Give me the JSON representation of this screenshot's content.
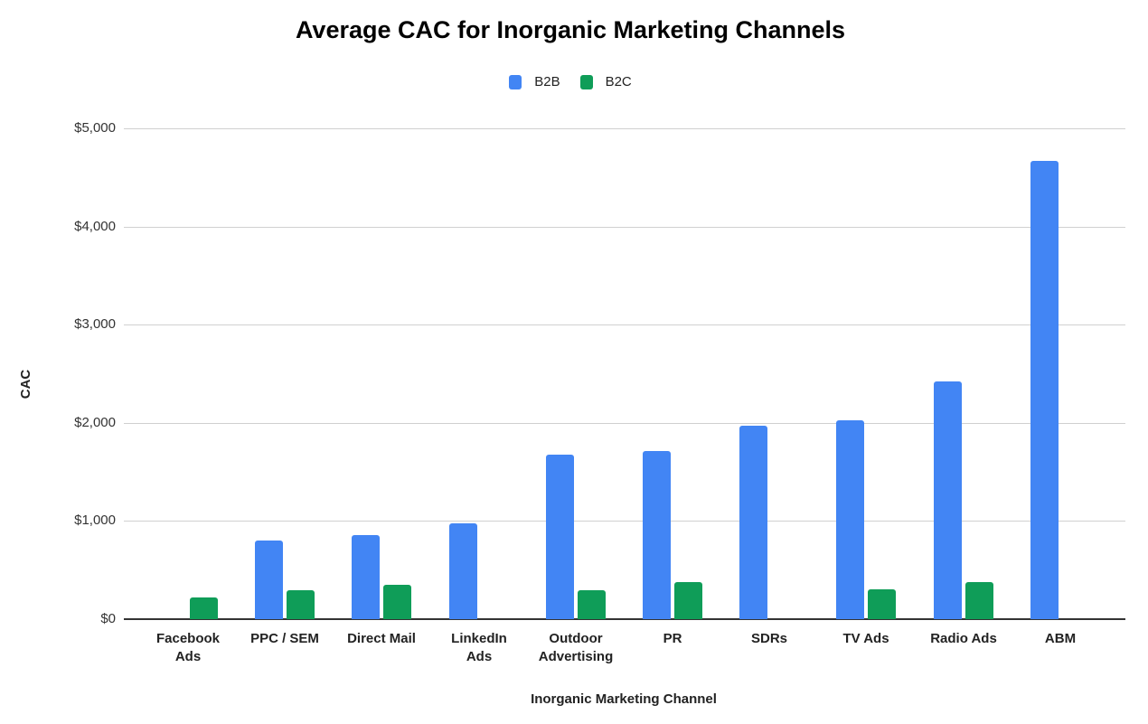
{
  "chart_data": {
    "type": "bar",
    "title": "Average CAC for Inorganic Marketing Channels",
    "xlabel": "Inorganic Marketing Channel",
    "ylabel": "CAC",
    "ylim": [
      0,
      5000
    ],
    "yticks": [
      "$0",
      "$1,000",
      "$2,000",
      "$3,000",
      "$4,000",
      "$5,000"
    ],
    "ytick_values": [
      0,
      1000,
      2000,
      3000,
      4000,
      5000
    ],
    "grid": true,
    "legend_position": "top",
    "categories": [
      "Facebook Ads",
      "PPC / SEM",
      "Direct Mail",
      "LinkedIn Ads",
      "Outdoor Advertising",
      "PR",
      "SDRs",
      "TV Ads",
      "Radio Ads",
      "ABM"
    ],
    "category_labels": [
      "Facebook\nAds",
      "PPC / SEM",
      "Direct Mail",
      "LinkedIn\nAds",
      "Outdoor\nAdvertising",
      "PR",
      "SDRs",
      "TV Ads",
      "Radio Ads",
      "ABM"
    ],
    "series": [
      {
        "name": "B2B",
        "color": "#4285f4",
        "values": [
          null,
          800,
          855,
          980,
          1680,
          1710,
          1970,
          2025,
          2420,
          4665
        ]
      },
      {
        "name": "B2C",
        "color": "#0f9d58",
        "values": [
          225,
          295,
          350,
          null,
          295,
          375,
          null,
          305,
          375,
          null
        ]
      }
    ]
  }
}
